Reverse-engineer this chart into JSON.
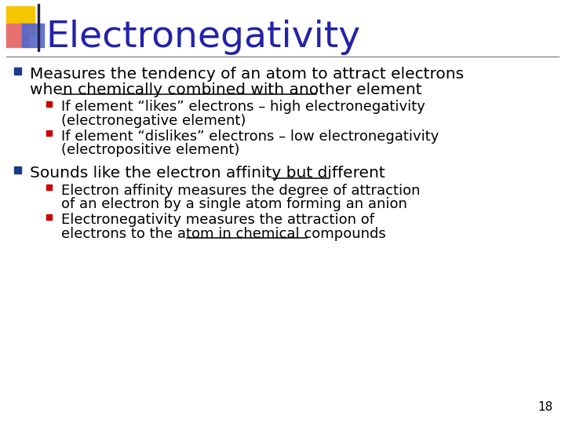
{
  "title": "Electronegativity",
  "title_color": "#2222aa",
  "title_fontsize": 34,
  "background_color": "#ffffff",
  "slide_number": "18",
  "bullet_color": "#1a3a8c",
  "sub_bullet_color": "#cc0000",
  "body_fontsize": 14.5,
  "sub_fontsize": 13.0,
  "num_fontsize": 11,
  "square_yellow": "#f5c500",
  "square_pink": "#e87070",
  "square_blue": "#5566cc",
  "line_color": "#888888",
  "text_color": "#000000",
  "bullet1_l1": "Measures the tendency of an atom to attract electrons",
  "bullet1_l2_pre": "when ",
  "bullet1_l2_ul": "chemically combined with another element",
  "sub1_l1": "If element “likes” electrons – high electronegativity",
  "sub1_l2": "(electronegative element)",
  "sub2_l1": "If element “dislikes” electrons – low electronegativity",
  "sub2_l2": "(electropositive element)",
  "bullet2_pre": "Sounds like the electron affinity but ",
  "bullet2_ul": "different",
  "sub3_l1": "Electron affinity measures the degree of attraction",
  "sub3_l2": "of an electron by a single atom forming an anion",
  "sub4_l1": "Electronegativity measures the attraction of",
  "sub4_l2_pre": "electrons to the atom ",
  "sub4_l2_ul": "in chemical compounds"
}
